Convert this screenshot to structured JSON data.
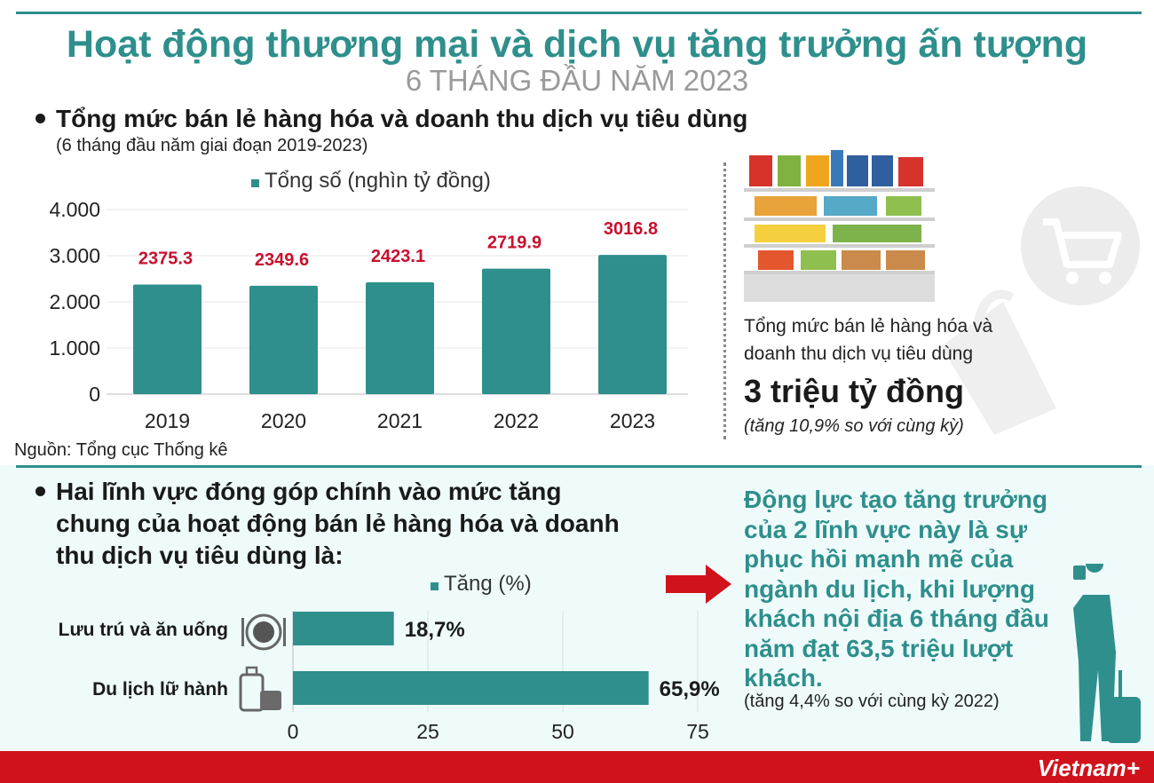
{
  "title": "Hoạt động thương mại và dịch vụ tăng trưởng ấn tượng",
  "subtitle": "6 THÁNG ĐẦU NĂM 2023",
  "section1": {
    "heading": "Tổng mức bán lẻ hàng hóa và doanh thu dịch vụ tiêu dùng",
    "note": "(6 tháng đầu năm giai đoạn 2019-2023)",
    "source": "Nguồn: Tổng cục Thống kê"
  },
  "side_panel": {
    "line1": "Tổng mức bán lẻ hàng hóa và",
    "line2": "doanh thu dịch vụ tiêu dùng",
    "big": "3 triệu tỷ đồng",
    "note": "(tăng 10,9% so với cùng kỳ)"
  },
  "section2": {
    "heading_lines": [
      "Hai lĩnh vực đóng góp chính vào mức tăng",
      "chung của hoạt động bán lẻ hàng hóa và doanh",
      "thu dịch vụ tiêu dùng là:"
    ]
  },
  "right_text": {
    "lines": [
      "Động lực tạo tăng trưởng",
      "của 2 lĩnh vực này là sự",
      "phục hồi mạnh mẽ của",
      "ngành du lịch, khi lượng",
      "khách nội địa 6 tháng đầu",
      "năm đạt 63,5 triệu lượt",
      "khách."
    ],
    "note": "(tăng 4,4% so với cùng kỳ 2022)"
  },
  "brand": "Vietnam+",
  "colors": {
    "teal": "#2e8f8c",
    "red": "#c8102e",
    "brand_red": "#d0131b"
  },
  "chart_data": [
    {
      "type": "bar",
      "legend": "Tổng số (nghìn tỷ đồng)",
      "categories": [
        "2019",
        "2020",
        "2021",
        "2022",
        "2023"
      ],
      "values": [
        2375.3,
        2349.6,
        2423.1,
        2719.9,
        3016.8
      ],
      "value_labels": [
        "2375.3",
        "2349.6",
        "2423.1",
        "2719.9",
        "3016.8"
      ],
      "yticks": [
        "0",
        "1.000",
        "2.000",
        "3.000",
        "4.000"
      ],
      "ytick_values": [
        0,
        1000,
        2000,
        3000,
        4000
      ],
      "ylim": [
        0,
        4000
      ],
      "grid": true
    },
    {
      "type": "bar",
      "orientation": "horizontal",
      "legend": "Tăng (%)",
      "categories": [
        "Lưu trú và ăn uống",
        "Du lịch lữ hành"
      ],
      "values": [
        18.7,
        65.9
      ],
      "value_labels": [
        "18,7%",
        "65,9%"
      ],
      "xticks": [
        "0",
        "25",
        "50",
        "75"
      ],
      "xtick_values": [
        0,
        25,
        50,
        75
      ],
      "xlim": [
        0,
        75
      ],
      "grid": true
    }
  ]
}
